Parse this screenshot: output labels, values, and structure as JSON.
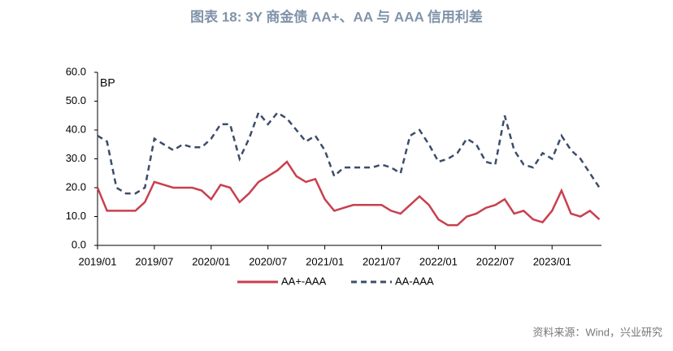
{
  "chart_data": {
    "type": "line",
    "title": "图表 18: 3Y 商金债 AA+、AA 与 AAA 信用利差",
    "y_unit_label": "BP",
    "source": "资料来源：Wind，兴业研究",
    "x": [
      "2019/01",
      "2019/02",
      "2019/03",
      "2019/04",
      "2019/05",
      "2019/06",
      "2019/07",
      "2019/08",
      "2019/09",
      "2019/10",
      "2019/11",
      "2019/12",
      "2020/01",
      "2020/02",
      "2020/03",
      "2020/04",
      "2020/05",
      "2020/06",
      "2020/07",
      "2020/08",
      "2020/09",
      "2020/10",
      "2020/11",
      "2020/12",
      "2021/01",
      "2021/02",
      "2021/03",
      "2021/04",
      "2021/05",
      "2021/06",
      "2021/07",
      "2021/08",
      "2021/09",
      "2021/10",
      "2021/11",
      "2021/12",
      "2022/01",
      "2022/02",
      "2022/03",
      "2022/04",
      "2022/05",
      "2022/06",
      "2022/07",
      "2022/08",
      "2022/09",
      "2022/10",
      "2022/11",
      "2022/12",
      "2023/01",
      "2023/02",
      "2023/03",
      "2023/04",
      "2023/05",
      "2023/06"
    ],
    "xticks": [
      "2019/01",
      "2019/07",
      "2020/01",
      "2020/07",
      "2021/01",
      "2021/07",
      "2022/01",
      "2022/07",
      "2023/01"
    ],
    "series": [
      {
        "name": "AA+-AAA",
        "color": "#c8404e",
        "dash": "solid",
        "values": [
          20,
          12,
          12,
          12,
          12,
          15,
          22,
          21,
          20,
          20,
          20,
          19,
          16,
          21,
          20,
          15,
          18,
          22,
          24,
          26,
          29,
          24,
          22,
          23,
          16,
          12,
          13,
          14,
          14,
          14,
          14,
          12,
          11,
          14,
          17,
          14,
          9,
          7,
          7,
          10,
          11,
          13,
          14,
          16,
          11,
          12,
          9,
          8,
          12,
          19,
          11,
          10,
          12,
          9
        ]
      },
      {
        "name": "AA-AAA",
        "color": "#3c4d6b",
        "dash": "dashed",
        "values": [
          38,
          36,
          20,
          18,
          18,
          20,
          37,
          35,
          33,
          35,
          34,
          34,
          37,
          42,
          42,
          30,
          37,
          46,
          42,
          46,
          44,
          40,
          36,
          38,
          33,
          24,
          27,
          27,
          27,
          27,
          28,
          27,
          25,
          38,
          40,
          35,
          29,
          30,
          32,
          37,
          35,
          29,
          28,
          45,
          33,
          28,
          27,
          32,
          30,
          38,
          33,
          30,
          25,
          20
        ]
      }
    ],
    "ylim": [
      0,
      60
    ],
    "yticks": [
      {
        "value": 0,
        "label": "0.0"
      },
      {
        "value": 10,
        "label": "10.0"
      },
      {
        "value": 20,
        "label": "20.0"
      },
      {
        "value": 30,
        "label": "30.0"
      },
      {
        "value": 40,
        "label": "40.0"
      },
      {
        "value": 50,
        "label": "50.0"
      },
      {
        "value": 60,
        "label": "60.0"
      }
    ]
  }
}
